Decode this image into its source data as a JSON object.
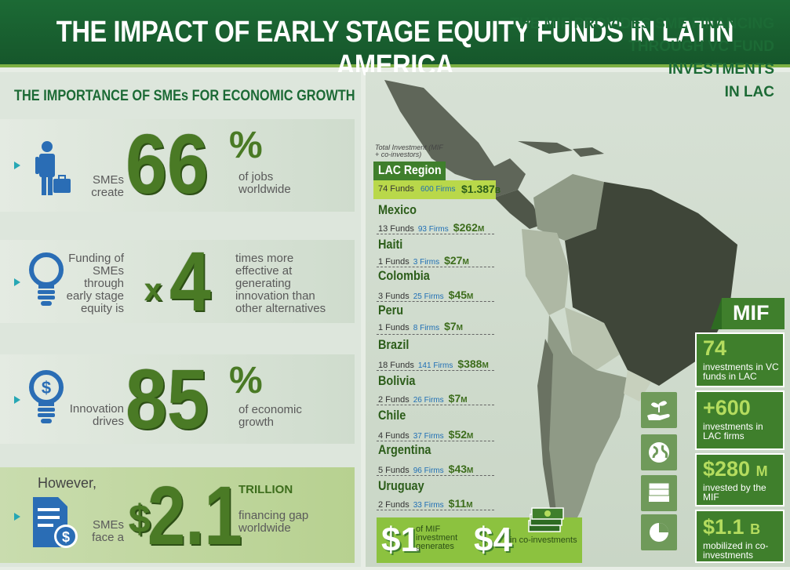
{
  "header": {
    "title": "THE IMPACT OF EARLY STAGE EQUITY FUNDS IN LATIN AMERICA"
  },
  "left": {
    "section_title": "THE IMPORTANCE OF SMEs FOR ECONOMIC GROWTH",
    "jobs": {
      "before": "SMEs create",
      "number": "66",
      "unit": "%",
      "after": "of jobs worldwide"
    },
    "innovation": {
      "before": "Funding of SMEs through early stage equity is",
      "multiplier": "x",
      "number": "4",
      "after": "times more effective at generating innovation than other alternatives"
    },
    "drives": {
      "before": "Innovation drives",
      "number": "85",
      "unit": "%",
      "after": "of economic growth"
    },
    "gap": {
      "lead": "However,",
      "before": "SMEs face a",
      "currency": "$",
      "number": "2.1",
      "scale": "TRILLION",
      "after": "financing gap worldwide"
    }
  },
  "right": {
    "section_title_lines": [
      "THE MIF PROVIDES SME FINANCING",
      "THROUGH VC FUND",
      "INVESTMENTS",
      "IN LAC"
    ],
    "total_note": "Total Investment (MIF + co-investors)",
    "region": {
      "name": "LAC Region",
      "funds": "74 Funds",
      "firms": "600 Firms",
      "amount": "$1.387",
      "unit": "B"
    },
    "countries": [
      {
        "name": "Mexico",
        "funds": "13 Funds",
        "firms": "93 Firms",
        "amount": "$262",
        "unit": "M"
      },
      {
        "name": "Haiti",
        "funds": "1 Funds",
        "firms": "3 Firms",
        "amount": "$27",
        "unit": "M"
      },
      {
        "name": "Colombia",
        "funds": "3 Funds",
        "firms": "25 Firms",
        "amount": "$45",
        "unit": "M"
      },
      {
        "name": "Peru",
        "funds": "1 Funds",
        "firms": "8 Firms",
        "amount": "$7",
        "unit": "M"
      },
      {
        "name": "Brazil",
        "funds": "18 Funds",
        "firms": "141 Firms",
        "amount": "$388",
        "unit": "M"
      },
      {
        "name": "Bolivia",
        "funds": "2 Funds",
        "firms": "26 Firms",
        "amount": "$7",
        "unit": "M"
      },
      {
        "name": "Chile",
        "funds": "4 Funds",
        "firms": "37 Firms",
        "amount": "$52",
        "unit": "M"
      },
      {
        "name": "Argentina",
        "funds": "5 Funds",
        "firms": "96 Firms",
        "amount": "$43",
        "unit": "M"
      },
      {
        "name": "Uruguay",
        "funds": "2 Funds",
        "firms": "33 Firms",
        "amount": "$11",
        "unit": "M"
      }
    ],
    "leverage": {
      "one": "$1",
      "one_text": "of MIF investment generates",
      "four": "$4",
      "four_text": "in co-investments"
    },
    "mif": {
      "label": "MIF",
      "stats": [
        {
          "value": "74",
          "suffix": "",
          "text": "investments in VC funds in LAC",
          "icon": "hand-plant-icon"
        },
        {
          "value": "+600",
          "suffix": "",
          "text": "investments in LAC firms",
          "icon": "globe-icon"
        },
        {
          "value": "$280",
          "suffix": "M",
          "text": "invested by the MIF",
          "icon": "cash-stack-icon"
        },
        {
          "value": "$1.1",
          "suffix": "B",
          "text": "mobilized in co-investments",
          "icon": "pie-chart-icon"
        }
      ]
    }
  },
  "colors": {
    "header_green": "#1c6a35",
    "accent_green": "#4a7a25",
    "lime": "#8cc23f",
    "teal_arrow": "#26a7b4",
    "icon_blue": "#2a6db5"
  }
}
